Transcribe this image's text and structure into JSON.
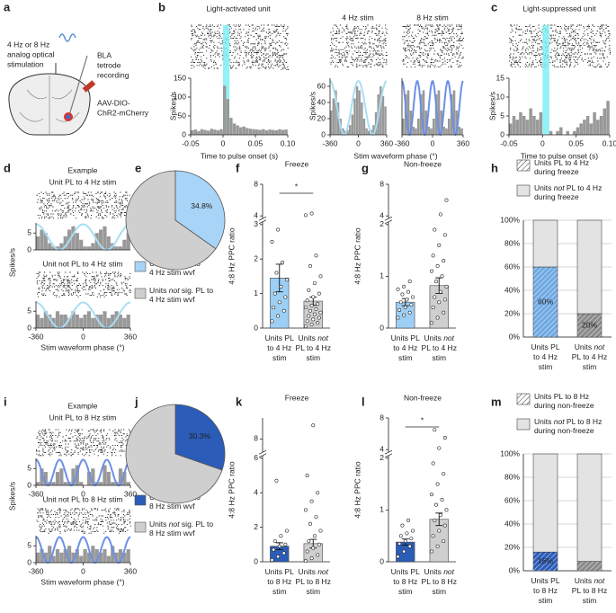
{
  "panel_labels": [
    "a",
    "b",
    "c",
    "d",
    "e",
    "f",
    "g",
    "h",
    "i",
    "j",
    "k",
    "l",
    "m"
  ],
  "diagram": {
    "stim_text": [
      "4 Hz or 8 Hz",
      "analog optical",
      "stimulation"
    ],
    "recording_text": [
      "BLA",
      "tetrode",
      "recording"
    ],
    "virus_text": [
      "AAV-DIO-",
      "ChR2-mCherry"
    ]
  },
  "chart_data": [
    {
      "type": "histogram",
      "title": "Light-activated unit",
      "xlabel": "Time to pulse onset (s)",
      "ylabel": "Spikes/s",
      "raster": true,
      "bins": [
        -0.05,
        -0.045,
        -0.04,
        -0.035,
        -0.03,
        -0.025,
        -0.02,
        -0.015,
        -0.01,
        -0.005,
        0,
        0.005,
        0.01,
        0.015,
        0.02,
        0.025,
        0.03,
        0.035,
        0.04,
        0.045,
        0.05,
        0.055,
        0.06,
        0.065,
        0.07,
        0.075,
        0.08,
        0.085,
        0.09,
        0.095,
        0.1
      ],
      "values": [
        12,
        14,
        10,
        15,
        13,
        11,
        16,
        14,
        12,
        15,
        130,
        95,
        45,
        30,
        25,
        20,
        22,
        18,
        16,
        15,
        14,
        13,
        15,
        12,
        14,
        13,
        12,
        15,
        13,
        14
      ],
      "color": "#999999",
      "xlim": [
        -0.05,
        0.1
      ],
      "ylim": [
        0,
        150
      ],
      "xticks": [
        -0.05,
        0,
        0.05,
        {
          "value": 0.1,
          "label": "0.10"
        }
      ],
      "yticks": [
        0,
        50,
        100,
        150
      ],
      "stim_window": [
        0,
        0.01
      ],
      "stim_color": "#7ff0f5"
    },
    {
      "type": "histogram",
      "title": "4 Hz stim",
      "xlabel": "Stim waveform phase (°)",
      "ylabel": "Spikes/s",
      "raster": true,
      "bins": [
        -360,
        -330,
        -300,
        -270,
        -240,
        -210,
        -180,
        -150,
        -120,
        -90,
        -60,
        -30,
        0,
        30,
        60,
        90,
        120,
        150,
        180,
        210,
        240,
        270,
        300,
        330,
        360
      ],
      "values": [
        30,
        45,
        55,
        40,
        20,
        8,
        5,
        6,
        12,
        25,
        45,
        60,
        55,
        40,
        20,
        8,
        5,
        6,
        12,
        28,
        50,
        60,
        48,
        35
      ],
      "color": "#999999",
      "xlim": [
        -360,
        360
      ],
      "ylim": [
        0,
        70
      ],
      "xticks": [
        -360,
        0,
        360
      ],
      "yticks": [
        0,
        20,
        40,
        60
      ],
      "stim_curve": {
        "color": "#a9def2",
        "cycles": 2
      }
    },
    {
      "type": "histogram",
      "title": "8 Hz stim",
      "raster": true,
      "bins": [
        -360,
        -330,
        -300,
        -270,
        -240,
        -210,
        -180,
        -150,
        -120,
        -90,
        -60,
        -30,
        0,
        30,
        60,
        90,
        120,
        150,
        180,
        210,
        240,
        270,
        300,
        330,
        360
      ],
      "values": [
        20,
        50,
        55,
        30,
        10,
        8,
        20,
        50,
        55,
        30,
        10,
        8,
        20,
        50,
        55,
        30,
        10,
        8,
        20,
        50,
        55,
        30,
        10,
        8
      ],
      "color": "#999999",
      "xlim": [
        -360,
        360
      ],
      "ylim": [
        0,
        70
      ],
      "xticks": [
        -360,
        0,
        360
      ],
      "stim_curve": {
        "color": "#6d8fe6",
        "cycles": 4
      }
    },
    {
      "type": "histogram",
      "title": "Light-suppressed unit",
      "xlabel": "Time to pulse onset (s)",
      "ylabel": "Spikes/s",
      "raster": true,
      "bins": [
        -0.05,
        -0.045,
        -0.04,
        -0.035,
        -0.03,
        -0.025,
        -0.02,
        -0.015,
        -0.01,
        -0.005,
        0,
        0.005,
        0.01,
        0.015,
        0.02,
        0.025,
        0.03,
        0.035,
        0.04,
        0.045,
        0.05,
        0.055,
        0.06,
        0.065,
        0.07,
        0.075,
        0.08,
        0.085,
        0.09,
        0.095,
        0.1
      ],
      "values": [
        3,
        5,
        4,
        6,
        5,
        4,
        7,
        5,
        4,
        6,
        0,
        0,
        1,
        0,
        1,
        2,
        0,
        1,
        0,
        1,
        2,
        3,
        4,
        5,
        3,
        6,
        4,
        5,
        7,
        9
      ],
      "color": "#999999",
      "xlim": [
        -0.05,
        0.1
      ],
      "ylim": [
        0,
        15
      ],
      "xticks": [
        -0.05,
        0,
        0.05,
        {
          "value": 0.1,
          "label": "0.10"
        }
      ],
      "yticks": [
        0,
        5,
        10,
        15
      ],
      "stim_window": [
        0,
        0.01
      ],
      "stim_color": "#7ff0f5"
    },
    {
      "type": "histogram",
      "subtitle": "Example",
      "title": "Unit PL to 4 Hz stim",
      "ylabel": "Spikes/s",
      "raster": true,
      "bins": [
        -360,
        -330,
        -300,
        -270,
        -240,
        -210,
        -180,
        -150,
        -120,
        -90,
        -60,
        -30,
        0,
        30,
        60,
        90,
        120,
        150,
        180,
        210,
        240,
        270,
        300,
        330,
        360
      ],
      "values": [
        4,
        6,
        5,
        2,
        1,
        1,
        2,
        4,
        6,
        7,
        5,
        3,
        1,
        1,
        2,
        5,
        6,
        7,
        4,
        2,
        1,
        1,
        3,
        5
      ],
      "color": "#999999",
      "xlim": [
        -360,
        360
      ],
      "ylim": [
        0,
        8
      ],
      "yticks": [
        0,
        5
      ],
      "stim_curve": {
        "color": "#a9def2",
        "cycles": 2
      }
    },
    {
      "type": "histogram",
      "title": "Unit not PL to 4 Hz stim",
      "xlabel": "Stim waveform phase (°)",
      "raster": true,
      "bins": [
        -360,
        -330,
        -300,
        -270,
        -240,
        -210,
        -180,
        -150,
        -120,
        -90,
        -60,
        -30,
        0,
        30,
        60,
        90,
        120,
        150,
        180,
        210,
        240,
        270,
        300,
        330,
        360
      ],
      "values": [
        4,
        3,
        5,
        4,
        3,
        5,
        4,
        4,
        3,
        5,
        4,
        3,
        4,
        5,
        3,
        4,
        4,
        5,
        3,
        4,
        5,
        4,
        3,
        4
      ],
      "color": "#999999",
      "xlim": [
        -360,
        360
      ],
      "ylim": [
        0,
        8
      ],
      "xticks": [
        -360,
        0,
        360
      ],
      "yticks": [
        0,
        5
      ],
      "stim_curve": {
        "color": "#a9def2",
        "cycles": 2
      }
    },
    {
      "type": "pie",
      "categories": [
        "Units sig. PL to 4 Hz stim wvf",
        "Units not sig. PL to 4 Hz stim wvf"
      ],
      "values": [
        34.8,
        65.2
      ],
      "value_labels": [
        "34.8%",
        null
      ],
      "colors": [
        "#a8d4f7",
        "#cfcfcf"
      ]
    },
    {
      "type": "dot_bar",
      "title": "Freeze",
      "ylabel": "4:8 Hz PPC ratio",
      "categories": [
        "Units PL to 4 Hz stim",
        "Units not PL to 4 Hz stim"
      ],
      "values": [
        1.45,
        0.78
      ],
      "errors": [
        0.4,
        0.12
      ],
      "colors": [
        "#9dcff5",
        "#cfcfcf"
      ],
      "points": [
        [
          0.2,
          0.35,
          0.5,
          0.6,
          0.75,
          0.9,
          1.0,
          1.2,
          1.4,
          1.6,
          1.9,
          2.5,
          2.85
        ],
        [
          0.05,
          0.1,
          0.15,
          0.2,
          0.25,
          0.3,
          0.35,
          0.4,
          0.45,
          0.5,
          0.55,
          0.6,
          0.65,
          0.7,
          0.8,
          0.9,
          1.0,
          1.1,
          1.3,
          1.5,
          1.8,
          2.1,
          4.1,
          4.3
        ]
      ],
      "ylim": [
        0,
        8
      ],
      "axis_break": [
        3,
        4
      ],
      "yticks": [
        0,
        1,
        2,
        3,
        4,
        8
      ],
      "annotation": "*"
    },
    {
      "type": "dot_bar",
      "title": "Non-freeze",
      "ylabel": "4:8 Hz PPC ratio",
      "categories": [
        "Units PL to 4 Hz stim",
        "Units not PL to 4 Hz stim"
      ],
      "values": [
        0.5,
        0.82
      ],
      "errors": [
        0.07,
        0.15
      ],
      "colors": [
        "#9dcff5",
        "#cfcfcf"
      ],
      "points": [
        [
          0.2,
          0.25,
          0.3,
          0.35,
          0.4,
          0.45,
          0.5,
          0.55,
          0.6,
          0.65,
          0.7,
          0.75,
          0.8,
          0.9
        ],
        [
          0.1,
          0.2,
          0.3,
          0.4,
          0.5,
          0.55,
          0.6,
          0.7,
          0.8,
          0.9,
          1.0,
          1.1,
          1.2,
          1.3,
          1.4,
          1.6,
          1.8,
          1.9,
          4.2,
          6.0
        ]
      ],
      "ylim": [
        0,
        8
      ],
      "axis_break": [
        2,
        4
      ],
      "yticks": [
        0,
        1,
        2,
        4,
        8
      ]
    },
    {
      "type": "stacked_bar",
      "categories": [
        "Units PL to 4 Hz stim",
        "Units not PL to 4 Hz stim"
      ],
      "bar_colors": [
        "#6fa9e3",
        "#8a8a8a"
      ],
      "series": [
        {
          "name": "Units PL to 4 Hz during freeze",
          "color": "#ffffff",
          "hatch": true,
          "values": [
            60,
            20
          ],
          "value_labels": [
            "60%",
            "20%"
          ]
        },
        {
          "name": "Units not PL to 4 Hz during freeze",
          "color": "#e3e3e3",
          "values": [
            40,
            80
          ]
        }
      ],
      "ylim": [
        0,
        100
      ],
      "yticks": [
        {
          "value": 0,
          "label": "0%"
        },
        {
          "value": 20,
          "label": "20%"
        },
        {
          "value": 40,
          "label": "40%"
        },
        {
          "value": 60,
          "label": "60%"
        },
        {
          "value": 80,
          "label": "80%"
        },
        {
          "value": 100,
          "label": "100%"
        }
      ],
      "grid": true
    },
    {
      "type": "histogram",
      "subtitle": "Example",
      "title": "Unit PL to 8 Hz stim",
      "ylabel": "Spikes/s",
      "raster": true,
      "bins": [
        -360,
        -330,
        -300,
        -270,
        -240,
        -210,
        -180,
        -150,
        -120,
        -90,
        -60,
        -30,
        0,
        30,
        60,
        90,
        120,
        150,
        180,
        210,
        240,
        270,
        300,
        330,
        360
      ],
      "values": [
        1,
        5,
        4,
        1,
        1,
        4,
        5,
        1,
        1,
        5,
        6,
        1,
        0,
        4,
        5,
        1,
        1,
        6,
        4,
        1,
        1,
        5,
        4,
        1
      ],
      "color": "#999999",
      "xlim": [
        -360,
        360
      ],
      "ylim": [
        0,
        8
      ],
      "xticks": [
        -360,
        0,
        360
      ],
      "yticks": [
        0,
        5
      ],
      "stim_curve": {
        "color": "#6d8fe6",
        "cycles": 4
      }
    },
    {
      "type": "histogram",
      "title": "Unit not PL to 8 Hz stim",
      "xlabel": "Stim waveform phase (°)",
      "raster": true,
      "bins": [
        -360,
        -330,
        -300,
        -270,
        -240,
        -210,
        -180,
        -150,
        -120,
        -90,
        -60,
        -30,
        0,
        30,
        60,
        90,
        120,
        150,
        180,
        210,
        240,
        270,
        300,
        330,
        360
      ],
      "values": [
        3,
        4,
        3,
        5,
        2,
        4,
        3,
        4,
        5,
        3,
        4,
        2,
        4,
        3,
        5,
        4,
        3,
        4,
        2,
        5,
        3,
        4,
        3,
        4
      ],
      "color": "#999999",
      "xlim": [
        -360,
        360
      ],
      "ylim": [
        0,
        8
      ],
      "xticks": [
        -360,
        0,
        360
      ],
      "yticks": [
        0,
        5
      ],
      "stim_curve": {
        "color": "#6d8fe6",
        "cycles": 4
      }
    },
    {
      "type": "pie",
      "categories": [
        "Units sig. PL to 8 Hz stim wvf",
        "Units not sig. PL to 8 Hz stim wvf"
      ],
      "values": [
        30.3,
        69.7
      ],
      "value_labels": [
        "30.3%",
        null
      ],
      "colors": [
        "#2b5cb8",
        "#cfcfcf"
      ]
    },
    {
      "type": "dot_bar",
      "title": "Freeze",
      "ylabel": "4:8 Hz PPC ratio",
      "categories": [
        "Units PL to 8 Hz stim",
        "Units not PL to 8 Hz stim"
      ],
      "values": [
        0.9,
        1.05
      ],
      "errors": [
        0.2,
        0.25
      ],
      "colors": [
        "#2b5cb8",
        "#cfcfcf"
      ],
      "points": [
        [
          0.1,
          0.3,
          0.5,
          0.7,
          0.9,
          1.0,
          1.2,
          1.5,
          1.8,
          4.7
        ],
        [
          0.05,
          0.2,
          0.4,
          0.6,
          0.8,
          1.0,
          1.2,
          1.5,
          1.8,
          2.2,
          2.6,
          3.0,
          3.5,
          4.0,
          5.0,
          9.3
        ]
      ],
      "ylim": [
        0,
        10
      ],
      "axis_break": [
        6,
        7
      ],
      "yticks": [
        0,
        2,
        4,
        6,
        8
      ]
    },
    {
      "type": "dot_bar",
      "title": "Non-freeze",
      "ylabel": "4:8 Hz PPC ratio",
      "categories": [
        "Units PL to 8 Hz stim",
        "Units not PL to 8 Hz stim"
      ],
      "values": [
        0.38,
        0.82
      ],
      "errors": [
        0.06,
        0.12
      ],
      "colors": [
        "#2b5cb8",
        "#cfcfcf"
      ],
      "points": [
        [
          0.1,
          0.2,
          0.3,
          0.35,
          0.4,
          0.45,
          0.5,
          0.55,
          0.6,
          0.7,
          0.8
        ],
        [
          0.2,
          0.3,
          0.4,
          0.5,
          0.6,
          0.7,
          0.8,
          0.9,
          1.0,
          1.1,
          1.2,
          1.3,
          1.5,
          1.7,
          1.9,
          4.2,
          5.5,
          6.5
        ]
      ],
      "ylim": [
        0,
        8
      ],
      "axis_break": [
        2,
        4
      ],
      "yticks": [
        0,
        1,
        2,
        4,
        8
      ],
      "annotation": "*"
    },
    {
      "type": "stacked_bar",
      "categories": [
        "Units PL to 8 Hz stim",
        "Units not PL to 8 Hz stim"
      ],
      "bar_colors": [
        "#2b5cb8",
        "#8a8a8a"
      ],
      "series": [
        {
          "name": "Units PL to 8 Hz during non-freeze",
          "color": "#ffffff",
          "hatch": true,
          "values": [
            16,
            8
          ],
          "value_labels": [
            "16%",
            null
          ]
        },
        {
          "name": "Units not PL to 8 Hz during non-freeze",
          "color": "#e3e3e3",
          "values": [
            84,
            92
          ]
        }
      ],
      "ylim": [
        0,
        100
      ],
      "yticks": [
        {
          "value": 0,
          "label": "0%"
        },
        {
          "value": 20,
          "label": "20%"
        },
        {
          "value": 40,
          "label": "40%"
        },
        {
          "value": 60,
          "label": "60%"
        },
        {
          "value": 80,
          "label": "80%"
        },
        {
          "value": 100,
          "label": "100%"
        }
      ],
      "grid": true
    }
  ]
}
